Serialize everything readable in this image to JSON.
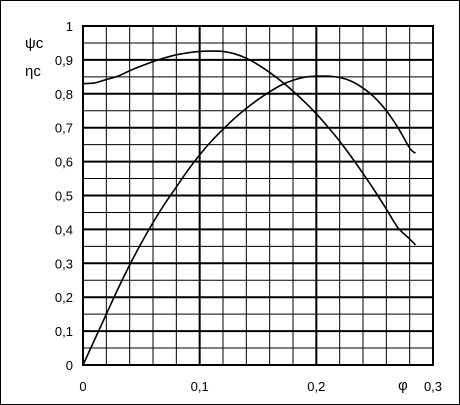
{
  "chart_data": {
    "type": "line",
    "title": "",
    "xlabel": "φ",
    "ylabel_top": "ψc",
    "ylabel_bottom": "ηc",
    "xlim": [
      0,
      0.3
    ],
    "ylim": [
      0,
      1
    ],
    "x_ticks": [
      {
        "value": 0,
        "label": "0"
      },
      {
        "value": 0.1,
        "label": "0,1"
      },
      {
        "value": 0.2,
        "label": "0,2"
      },
      {
        "value": 0.3,
        "label": "0,3"
      }
    ],
    "y_ticks": [
      {
        "value": 0,
        "label": "0"
      },
      {
        "value": 0.1,
        "label": "0,1"
      },
      {
        "value": 0.2,
        "label": "0,2"
      },
      {
        "value": 0.3,
        "label": "0,3"
      },
      {
        "value": 0.4,
        "label": "0,4"
      },
      {
        "value": 0.5,
        "label": "0,5"
      },
      {
        "value": 0.6,
        "label": "0,6"
      },
      {
        "value": 0.7,
        "label": "0,7"
      },
      {
        "value": 0.8,
        "label": "0,8"
      },
      {
        "value": 0.9,
        "label": "0,9"
      },
      {
        "value": 1,
        "label": "1"
      }
    ],
    "minor_grid_x_step": 0.02,
    "minor_grid_y_step": 0.05,
    "grid": true,
    "series": [
      {
        "color": "#000000",
        "x": [
          0,
          0.01,
          0.02,
          0.03,
          0.04,
          0.05,
          0.06,
          0.07,
          0.08,
          0.09,
          0.1,
          0.11,
          0.12,
          0.13,
          0.14,
          0.15,
          0.16,
          0.17,
          0.18,
          0.19,
          0.2,
          0.21,
          0.22,
          0.23,
          0.24,
          0.25,
          0.26,
          0.27,
          0.28,
          0.285
        ],
        "values": [
          0.83,
          0.832,
          0.842,
          0.852,
          0.868,
          0.882,
          0.895,
          0.906,
          0.915,
          0.921,
          0.925,
          0.926,
          0.925,
          0.918,
          0.905,
          0.886,
          0.863,
          0.837,
          0.808,
          0.776,
          0.741,
          0.702,
          0.66,
          0.614,
          0.565,
          0.514,
          0.46,
          0.405,
          0.372,
          0.354
        ]
      },
      {
        "color": "#000000",
        "x": [
          0,
          0.01,
          0.02,
          0.03,
          0.04,
          0.05,
          0.06,
          0.07,
          0.08,
          0.09,
          0.1,
          0.11,
          0.12,
          0.13,
          0.14,
          0.15,
          0.16,
          0.17,
          0.18,
          0.19,
          0.2,
          0.21,
          0.22,
          0.23,
          0.24,
          0.25,
          0.26,
          0.27,
          0.28,
          0.285
        ],
        "values": [
          0,
          0.075,
          0.15,
          0.225,
          0.295,
          0.36,
          0.42,
          0.475,
          0.525,
          0.575,
          0.62,
          0.66,
          0.695,
          0.728,
          0.757,
          0.783,
          0.806,
          0.826,
          0.84,
          0.849,
          0.852,
          0.852,
          0.848,
          0.837,
          0.817,
          0.789,
          0.75,
          0.7,
          0.64,
          0.625
        ]
      }
    ]
  }
}
